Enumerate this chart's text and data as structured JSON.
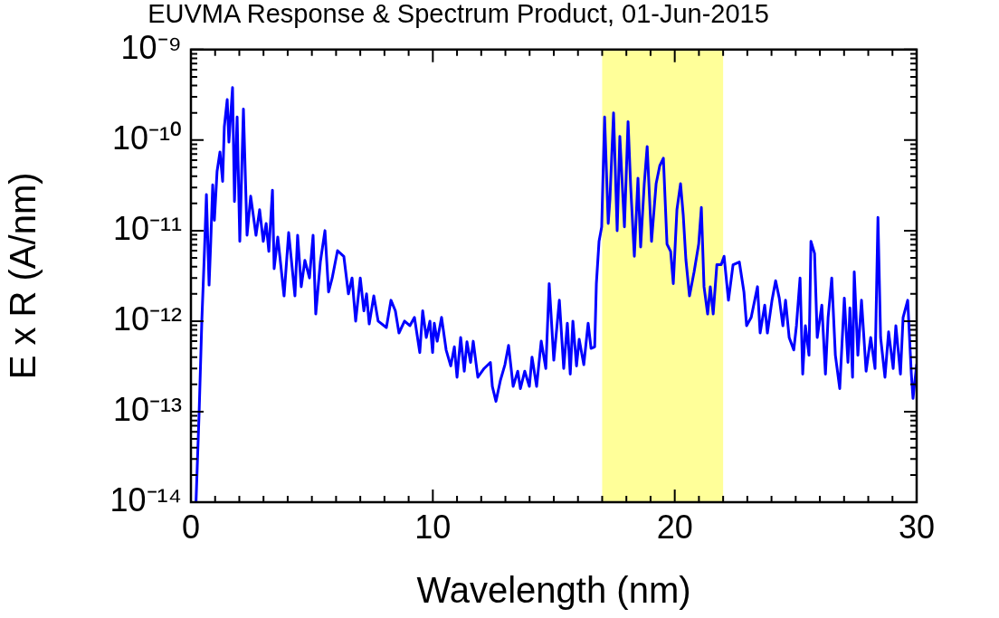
{
  "chart_data": {
    "type": "line",
    "title": "EUVMA Response & Spectrum Product, 01-Jun-2015",
    "xlabel": "Wavelength (nm)",
    "ylabel": "E x R (A/nm)",
    "color": "#0000ff",
    "log": "y",
    "grid": false,
    "legend": false,
    "xlim": [
      0,
      30
    ],
    "ylim": [
      1e-14,
      1e-09
    ],
    "xticks": [
      0,
      {
        "value": 1,
        "label": null
      },
      {
        "value": 2,
        "label": null
      },
      {
        "value": 3,
        "label": null
      },
      {
        "value": 4,
        "label": null
      },
      {
        "value": 5,
        "label": null
      },
      {
        "value": 6,
        "label": null
      },
      {
        "value": 7,
        "label": null
      },
      {
        "value": 8,
        "label": null
      },
      {
        "value": 9,
        "label": null
      },
      10,
      {
        "value": 11,
        "label": null
      },
      {
        "value": 12,
        "label": null
      },
      {
        "value": 13,
        "label": null
      },
      {
        "value": 14,
        "label": null
      },
      {
        "value": 15,
        "label": null
      },
      {
        "value": 16,
        "label": null
      },
      {
        "value": 17,
        "label": null
      },
      {
        "value": 18,
        "label": null
      },
      {
        "value": 19,
        "label": null
      },
      20,
      {
        "value": 21,
        "label": null
      },
      {
        "value": 22,
        "label": null
      },
      {
        "value": 23,
        "label": null
      },
      {
        "value": 24,
        "label": null
      },
      {
        "value": 25,
        "label": null
      },
      {
        "value": 26,
        "label": null
      },
      {
        "value": 27,
        "label": null
      },
      {
        "value": 28,
        "label": null
      },
      {
        "value": 29,
        "label": null
      },
      30
    ],
    "yticks": [
      {
        "value": 1e-14,
        "label": "10⁻¹⁴"
      },
      {
        "value": 2e-14,
        "label": null
      },
      {
        "value": 3e-14,
        "label": null
      },
      {
        "value": 4e-14,
        "label": null
      },
      {
        "value": 5e-14,
        "label": null
      },
      {
        "value": 6e-14,
        "label": null
      },
      {
        "value": 7e-14,
        "label": null
      },
      {
        "value": 8e-14,
        "label": null
      },
      {
        "value": 9e-14,
        "label": null
      },
      {
        "value": 1e-13,
        "label": "10⁻¹³"
      },
      {
        "value": 2e-13,
        "label": null
      },
      {
        "value": 3e-13,
        "label": null
      },
      {
        "value": 4e-13,
        "label": null
      },
      {
        "value": 5e-13,
        "label": null
      },
      {
        "value": 6e-13,
        "label": null
      },
      {
        "value": 7e-13,
        "label": null
      },
      {
        "value": 8e-13,
        "label": null
      },
      {
        "value": 9e-13,
        "label": null
      },
      {
        "value": 1e-12,
        "label": "10⁻¹²"
      },
      {
        "value": 2e-12,
        "label": null
      },
      {
        "value": 3e-12,
        "label": null
      },
      {
        "value": 4e-12,
        "label": null
      },
      {
        "value": 5e-12,
        "label": null
      },
      {
        "value": 6e-12,
        "label": null
      },
      {
        "value": 7e-12,
        "label": null
      },
      {
        "value": 8e-12,
        "label": null
      },
      {
        "value": 9e-12,
        "label": null
      },
      {
        "value": 1e-11,
        "label": "10⁻¹¹"
      },
      {
        "value": 2e-11,
        "label": null
      },
      {
        "value": 3e-11,
        "label": null
      },
      {
        "value": 4e-11,
        "label": null
      },
      {
        "value": 5e-11,
        "label": null
      },
      {
        "value": 6e-11,
        "label": null
      },
      {
        "value": 7e-11,
        "label": null
      },
      {
        "value": 8e-11,
        "label": null
      },
      {
        "value": 9e-11,
        "label": null
      },
      {
        "value": 1e-10,
        "label": "10⁻¹⁰"
      },
      {
        "value": 2e-10,
        "label": null
      },
      {
        "value": 3e-10,
        "label": null
      },
      {
        "value": 4e-10,
        "label": null
      },
      {
        "value": 5e-10,
        "label": null
      },
      {
        "value": 6e-10,
        "label": null
      },
      {
        "value": 7e-10,
        "label": null
      },
      {
        "value": 8e-10,
        "label": null
      },
      {
        "value": 9e-10,
        "label": null
      },
      {
        "value": 1e-09,
        "label": "10⁻⁹"
      }
    ],
    "bands": [
      {
        "axis": "x",
        "from": 17,
        "to": 22,
        "color": "#ffff99"
      }
    ],
    "x": [
      0.21,
      0.34,
      0.45,
      0.56,
      0.64,
      0.75,
      0.82,
      0.9,
      0.97,
      1.08,
      1.2,
      1.31,
      1.38,
      1.5,
      1.57,
      1.72,
      1.8,
      1.91,
      2.02,
      2.17,
      2.32,
      2.47,
      2.69,
      2.84,
      2.99,
      3.11,
      3.22,
      3.37,
      3.44,
      3.59,
      3.85,
      4.04,
      4.3,
      4.41,
      4.56,
      4.71,
      4.9,
      5.05,
      5.16,
      5.35,
      5.54,
      5.69,
      5.84,
      6.06,
      6.32,
      6.51,
      6.66,
      6.81,
      7.0,
      7.15,
      7.26,
      7.37,
      7.56,
      7.74,
      8.08,
      8.27,
      8.45,
      8.6,
      8.83,
      9.05,
      9.24,
      9.46,
      9.58,
      9.73,
      9.88,
      9.99,
      10.06,
      10.18,
      10.36,
      10.55,
      10.74,
      10.89,
      11.0,
      11.15,
      11.3,
      11.41,
      11.56,
      11.67,
      11.86,
      12.12,
      12.38,
      12.46,
      12.61,
      12.79,
      12.98,
      13.13,
      13.32,
      13.51,
      13.62,
      13.8,
      13.99,
      14.1,
      14.29,
      14.48,
      14.67,
      14.81,
      15.0,
      15.23,
      15.41,
      15.56,
      15.68,
      15.79,
      15.94,
      16.05,
      16.24,
      16.42,
      16.54,
      16.69,
      16.76,
      16.87,
      16.98,
      17.1,
      17.25,
      17.32,
      17.47,
      17.62,
      17.73,
      17.92,
      18.07,
      18.18,
      18.33,
      18.48,
      18.59,
      18.74,
      18.86,
      19.04,
      19.23,
      19.38,
      19.53,
      19.68,
      19.83,
      19.94,
      20.09,
      20.24,
      20.35,
      20.46,
      20.61,
      20.8,
      20.99,
      21.1,
      21.21,
      21.36,
      21.47,
      21.59,
      21.74,
      21.92,
      22.04,
      22.22,
      22.41,
      22.67,
      22.86,
      22.97,
      23.16,
      23.42,
      23.53,
      23.72,
      23.83,
      24.02,
      24.17,
      24.32,
      24.47,
      24.58,
      24.73,
      24.92,
      25.03,
      25.18,
      25.29,
      25.4,
      25.55,
      25.63,
      25.78,
      25.89,
      26.08,
      26.23,
      26.34,
      26.49,
      26.64,
      26.82,
      27.01,
      27.16,
      27.24,
      27.35,
      27.42,
      27.57,
      27.72,
      27.91,
      28.1,
      28.28,
      28.4,
      28.51,
      28.69,
      28.84,
      29.03,
      29.14,
      29.33,
      29.44,
      29.63,
      29.78,
      29.85,
      30.0
    ],
    "values": [
      1e-14,
      1e-13,
      1e-12,
      6e-12,
      2.5e-11,
      2.5e-12,
      7.6e-12,
      3.2e-11,
      1.3e-11,
      4.5e-11,
      7.4e-11,
      3.5e-11,
      1.4e-10,
      2.8e-10,
      9.5e-11,
      3.8e-10,
      2.1e-11,
      1.8e-10,
      7.6e-12,
      2.2e-10,
      8.9e-12,
      2.4e-11,
      8.9e-12,
      1.7e-11,
      7.6e-12,
      1.2e-11,
      5.9e-12,
      2.8e-11,
      3.8e-12,
      8.5e-12,
      1.9e-12,
      9.5e-12,
      1.9e-12,
      8.9e-12,
      2.4e-12,
      4.7e-12,
      3e-12,
      8.9e-12,
      1.2e-12,
      4.5e-12,
      1e-11,
      2.1e-12,
      3e-12,
      6e-12,
      5.2e-12,
      2e-12,
      3e-12,
      1e-12,
      3e-12,
      1.3e-12,
      2e-12,
      9.3e-13,
      1.9e-12,
      1e-12,
      8.5e-13,
      1.7e-12,
      1.3e-12,
      7.4e-13,
      1e-12,
      8.9e-13,
      1.1e-12,
      4.5e-13,
      1.3e-12,
      6.6e-13,
      1e-12,
      4.5e-13,
      9.5e-13,
      6e-13,
      1.1e-12,
      4.8e-13,
      3.2e-13,
      5.2e-13,
      2.4e-13,
      6.6e-13,
      2.8e-13,
      5.9e-13,
      3.5e-13,
      6e-13,
      2.4e-13,
      3e-13,
      3.5e-13,
      1.9e-13,
      1.3e-13,
      2.2e-13,
      3.3e-13,
      5.4e-13,
      1.9e-13,
      2.8e-13,
      1.8e-13,
      2.8e-13,
      1.9e-13,
      4e-13,
      1.9e-13,
      6e-13,
      3e-13,
      2.6e-12,
      3.7e-13,
      1.7e-12,
      3e-13,
      9.5e-13,
      2.6e-13,
      1e-12,
      3.2e-13,
      6.3e-13,
      3.3e-13,
      9.5e-13,
      5e-13,
      5.2e-13,
      2.6e-12,
      7.6e-12,
      1.1e-11,
      1.8e-10,
      1.2e-11,
      2.2e-11,
      2e-10,
      1e-11,
      1.1e-10,
      1.1e-11,
      1.6e-10,
      3e-11,
      5.2e-12,
      3.8e-11,
      6.6e-12,
      3.3e-11,
      8.5e-11,
      7.6e-12,
      3.3e-11,
      5.2e-11,
      6.3e-11,
      7.1e-12,
      5.9e-12,
      2.6e-12,
      1.7e-11,
      3.3e-11,
      1.5e-11,
      4.8e-12,
      1.9e-12,
      3.5e-12,
      7.1e-12,
      1.8e-11,
      2.4e-12,
      1.2e-12,
      2.4e-12,
      1.2e-12,
      4.2e-12,
      4.2e-12,
      5.2e-12,
      1.7e-12,
      4.2e-12,
      4.5e-12,
      2.1e-12,
      8.9e-13,
      1.1e-12,
      2.4e-12,
      7.4e-13,
      1.5e-12,
      7.4e-13,
      1.7e-12,
      2.8e-12,
      1.8e-12,
      8.9e-13,
      1.7e-12,
      6.6e-13,
      4.8e-13,
      8.9e-13,
      3e-12,
      2.6e-13,
      8.9e-13,
      4.2e-13,
      7.6e-12,
      5.6e-12,
      6.6e-13,
      1.5e-12,
      2.6e-13,
      1.1e-12,
      3e-12,
      4.2e-13,
      1.8e-13,
      1.8e-12,
      3.5e-13,
      1.4e-12,
      2.4e-13,
      3.5e-12,
      4.2e-13,
      1.7e-12,
      2.8e-13,
      6.6e-13,
      3e-13,
      1.4e-11,
      6.6e-13,
      2.4e-13,
      7.6e-13,
      3e-13,
      8.9e-13,
      2.6e-13,
      1.1e-12,
      1.7e-12,
      2.6e-13,
      1.4e-13,
      3.3e-13
    ]
  }
}
